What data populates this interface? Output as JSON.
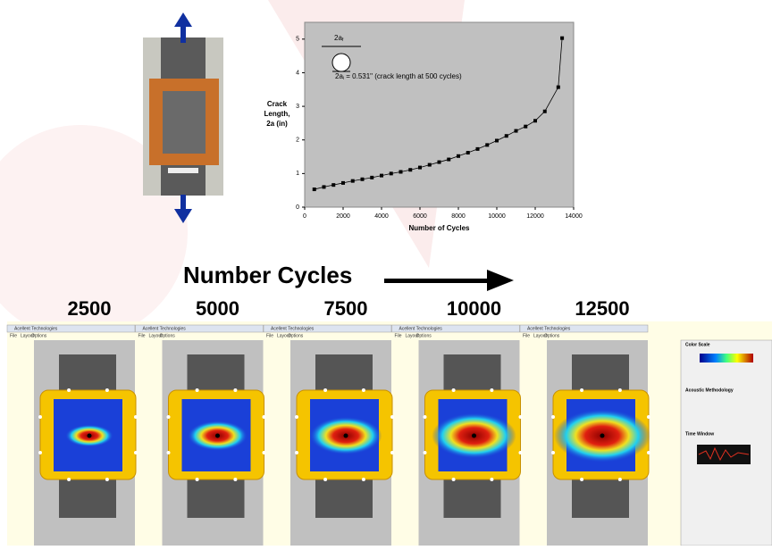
{
  "chart_data": {
    "type": "line",
    "ylabel": [
      "Crack",
      "Length,",
      "2a (in)"
    ],
    "xlabel": "Number of Cycles",
    "annotations": [
      {
        "text": "2a",
        "sub": "f"
      },
      {
        "text": "2a",
        "sub": "i",
        "rest": " = 0.531\" (crack length at 500 cycles)"
      }
    ],
    "x": [
      500,
      1000,
      1500,
      2000,
      2500,
      3000,
      3500,
      4000,
      4500,
      5000,
      5500,
      6000,
      6500,
      7000,
      7500,
      8000,
      8500,
      9000,
      9500,
      10000,
      10500,
      11000,
      11500,
      12000,
      12500,
      13200,
      13400
    ],
    "values": [
      0.53,
      0.6,
      0.66,
      0.72,
      0.78,
      0.83,
      0.88,
      0.94,
      1.0,
      1.05,
      1.11,
      1.18,
      1.26,
      1.34,
      1.42,
      1.52,
      1.62,
      1.73,
      1.85,
      1.98,
      2.12,
      2.27,
      2.4,
      2.57,
      2.85,
      3.57,
      5.03
    ],
    "color": "#000000",
    "xlim": [
      0,
      14000
    ],
    "xticks": [
      0,
      2000,
      4000,
      6000,
      8000,
      10000,
      12000,
      14000
    ],
    "ylim": [
      0,
      5.5
    ],
    "yticks": [
      0,
      1,
      2,
      3,
      4,
      5
    ],
    "plot_background": "#c0c0c0"
  },
  "progression": {
    "title": "Number Cycles",
    "cycles": [
      "2500",
      "5000",
      "7500",
      "10000",
      "12500"
    ]
  },
  "software": {
    "window_title": "Acellent Technologies",
    "menu": [
      "File",
      "Layout",
      "Options"
    ],
    "sidebar": [
      "Color Scale",
      "Acoustic Methodology",
      "Time Window"
    ]
  }
}
